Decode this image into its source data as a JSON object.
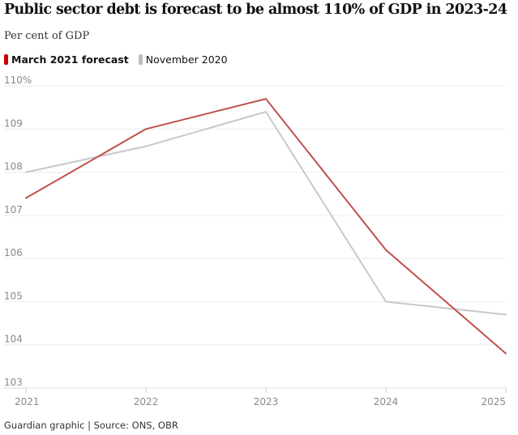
{
  "title": "Public sector debt is forecast to be almost 110% of GDP in 2023-24",
  "subtitle": "Per cent of GDP",
  "legend": {
    "series1": "March 2021 forecast",
    "series2": "November 2020"
  },
  "source": "Guardian graphic | Source: ONS, OBR",
  "colors": {
    "march": "#c70000",
    "november": "#c0c0c0"
  },
  "chart_data": {
    "type": "line",
    "x": [
      2021,
      2022,
      2023,
      2024,
      2025
    ],
    "xticks": [
      "2021",
      "2022",
      "2023",
      "2024",
      "2025"
    ],
    "yticks": [
      "110%",
      "109",
      "108",
      "107",
      "106",
      "105",
      "104",
      "103"
    ],
    "ylim": [
      103,
      110
    ],
    "series": [
      {
        "name": "March 2021 forecast",
        "color": "#c0504d",
        "values": [
          107.4,
          109.0,
          109.7,
          106.2,
          103.8
        ]
      },
      {
        "name": "November 2020",
        "color": "#c8c8c8",
        "values": [
          108.0,
          108.6,
          109.4,
          105.0,
          104.7
        ]
      }
    ],
    "grid": true,
    "legend": "top-left"
  }
}
